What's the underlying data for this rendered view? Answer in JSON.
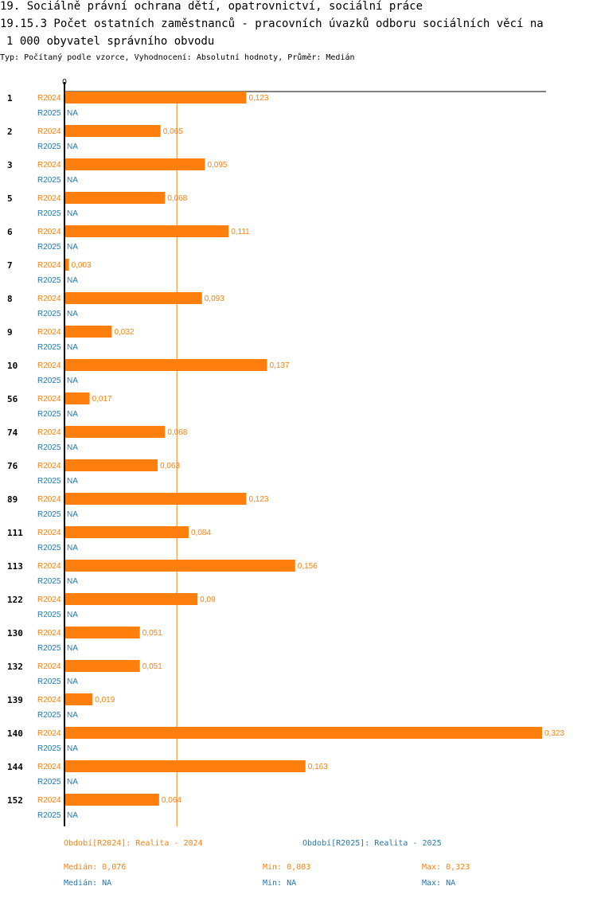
{
  "header": {
    "title_line1": "19. Sociálně právní ochrana dětí, opatrovnictví, sociální práce",
    "title_line2": "19.15.3 Počet ostatních zaměstnanců - pracovních úvazků odboru sociálních věcí na",
    "title_line3": "1 000 obyvatel správního obvodu",
    "subtitle": "Typ: Počítaný podle vzorce, Vyhodnocení: Absolutní hodnoty, Průměr: Medián"
  },
  "colors": {
    "r2024": "#ff7f0e",
    "r2025": "#1f77b4",
    "median_line": "#ff7f0e",
    "axis": "#000000"
  },
  "chart_data": {
    "type": "bar",
    "orientation": "horizontal",
    "axis_zero_label": "0",
    "xlim": [
      0,
      0.323
    ],
    "median_2024": 0.076,
    "categories": [
      "1",
      "2",
      "3",
      "5",
      "6",
      "7",
      "8",
      "9",
      "10",
      "56",
      "74",
      "76",
      "89",
      "111",
      "113",
      "122",
      "130",
      "132",
      "139",
      "140",
      "144",
      "152"
    ],
    "series": [
      {
        "name": "R2024",
        "values": [
          0.123,
          0.065,
          0.095,
          0.068,
          0.111,
          0.003,
          0.093,
          0.032,
          0.137,
          0.017,
          0.068,
          0.063,
          0.123,
          0.084,
          0.156,
          0.09,
          0.051,
          0.051,
          0.019,
          0.323,
          0.163,
          0.064
        ],
        "labels": [
          "0,123",
          "0,065",
          "0,095",
          "0,068",
          "0,111",
          "0,003",
          "0,093",
          "0,032",
          "0,137",
          "0,017",
          "0,068",
          "0,063",
          "0,123",
          "0,084",
          "0,156",
          "0,09",
          "0,051",
          "0,051",
          "0,019",
          "0,323",
          "0,163",
          "0,064"
        ]
      },
      {
        "name": "R2025",
        "values": [
          null,
          null,
          null,
          null,
          null,
          null,
          null,
          null,
          null,
          null,
          null,
          null,
          null,
          null,
          null,
          null,
          null,
          null,
          null,
          null,
          null,
          null
        ],
        "labels": [
          "NA",
          "NA",
          "NA",
          "NA",
          "NA",
          "NA",
          "NA",
          "NA",
          "NA",
          "NA",
          "NA",
          "NA",
          "NA",
          "NA",
          "NA",
          "NA",
          "NA",
          "NA",
          "NA",
          "NA",
          "NA",
          "NA"
        ]
      }
    ]
  },
  "legend": {
    "r2024": "Období[R2024]: Realita - 2024",
    "r2025": "Období[R2025]: Realita - 2025"
  },
  "stats": {
    "r2024": {
      "median": "Medián: 0,076",
      "min": "Min: 0,003",
      "max": "Max: 0,323"
    },
    "r2025": {
      "median": "Medián: NA",
      "min": "Min: NA",
      "max": "Max: NA"
    }
  }
}
